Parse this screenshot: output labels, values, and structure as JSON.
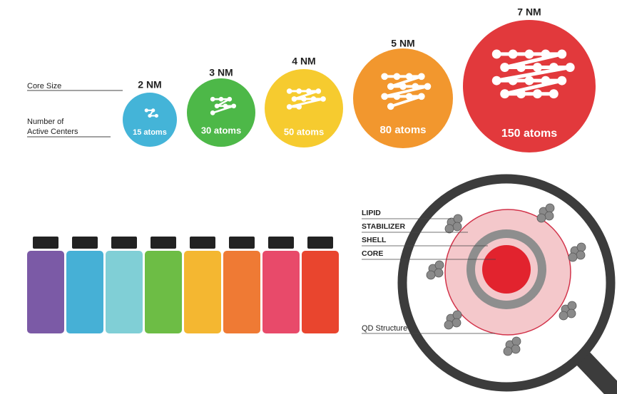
{
  "row_labels": {
    "core_size": "Core Size",
    "active_centers": [
      "Number of",
      "Active Centers"
    ]
  },
  "dots": [
    {
      "size": "2 NM",
      "atoms": "15 atoms",
      "color": "#44b4d8"
    },
    {
      "size": "3 NM",
      "atoms": "30 atoms",
      "color": "#4db848"
    },
    {
      "size": "4 NM",
      "atoms": "50 atoms",
      "color": "#f6cb2f"
    },
    {
      "size": "5 NM",
      "atoms": "80 atoms",
      "color": "#f2972e"
    },
    {
      "size": "7 NM",
      "atoms": "150 atoms",
      "color": "#e2393c"
    }
  ],
  "vials": {
    "cap_color": "#222222",
    "colors": [
      "#7b5aa6",
      "#46b0d6",
      "#80cfd6",
      "#6dbd45",
      "#f4b731",
      "#ef7a34",
      "#e84a6a",
      "#e9452e"
    ]
  },
  "structure": {
    "labels": [
      "LIPID",
      "STABILIZER",
      "SHELL",
      "CORE"
    ],
    "caption": "QD Structure"
  }
}
